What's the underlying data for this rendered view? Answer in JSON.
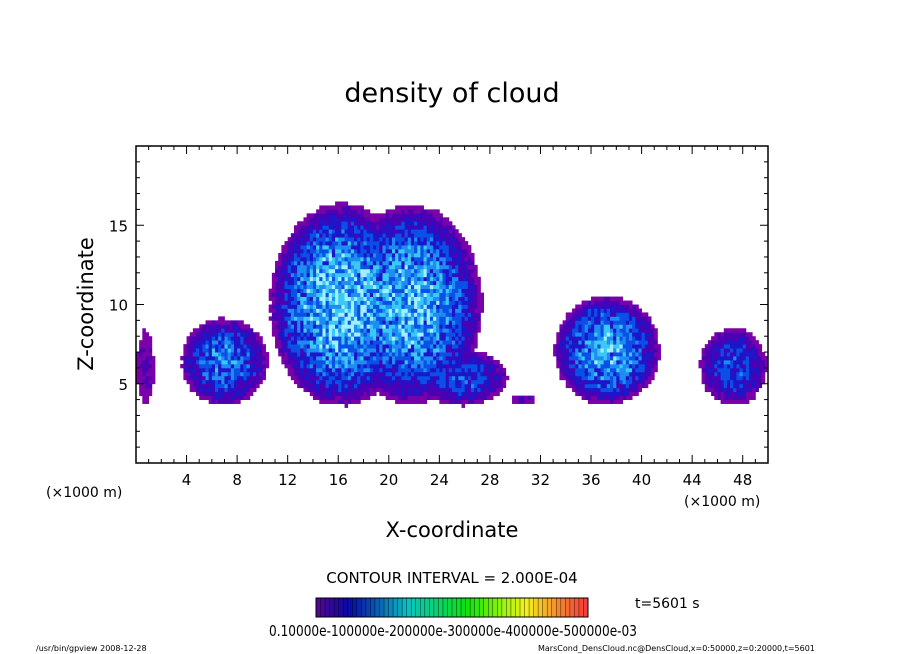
{
  "chart_data": {
    "type": "heatmap",
    "title": "density of cloud",
    "xlabel": "X-coordinate",
    "ylabel": "Z-coordinate",
    "x_unit_label": "(×1000 m)",
    "x_unit_label_left": "(×1000 m)",
    "xlim": [
      0,
      50
    ],
    "ylim": [
      0,
      20
    ],
    "x_ticks": [
      "4",
      "8",
      "12",
      "16",
      "20",
      "24",
      "28",
      "32",
      "36",
      "40",
      "44",
      "48"
    ],
    "y_ticks": [
      "5",
      "10",
      "15"
    ],
    "contour_interval_label": "CONTOUR INTERVAL = 2.000E-04",
    "time_label": "t=5601 s",
    "colorbar_labels": "0.10000e-100000e-200000e-300000e-400000e-500000e-03",
    "colorbar_range": [
      0,
      0.0006
    ],
    "colors": [
      "#7a00a8",
      "#4b00b4",
      "#1e14c8",
      "#0a50e6",
      "#1e8cf0",
      "#3cc8f5",
      "#a0f0ff"
    ],
    "clouds": [
      {
        "x_range": [
          0,
          1.5
        ],
        "z_range": [
          3.6,
          8.6
        ],
        "peak": 0.00012
      },
      {
        "x_range": [
          3.5,
          10.5
        ],
        "z_range": [
          3.6,
          9.2
        ],
        "peak": 0.00038
      },
      {
        "x_range": [
          10.5,
          22
        ],
        "z_range": [
          3.5,
          16.5
        ],
        "peak": 0.00052
      },
      {
        "x_range": [
          16,
          27.5
        ],
        "z_range": [
          3.6,
          16.4
        ],
        "peak": 0.00048
      },
      {
        "x_range": [
          22,
          29.5
        ],
        "z_range": [
          3.6,
          7.2
        ],
        "peak": 0.0003
      },
      {
        "x_range": [
          29.5,
          32
        ],
        "z_range": [
          3.6,
          4.4
        ],
        "peak": 0.0001
      },
      {
        "x_range": [
          33,
          41.5
        ],
        "z_range": [
          3.6,
          10.6
        ],
        "peak": 0.00045
      },
      {
        "x_range": [
          44.5,
          50
        ],
        "z_range": [
          3.6,
          8.6
        ],
        "peak": 0.0003
      }
    ]
  },
  "footer": {
    "left": "/usr/bin/gpview  2008-12-28",
    "right": "MarsCond_DensCloud.nc@DensCloud,x=0:50000,z=0:20000,t=5601"
  }
}
